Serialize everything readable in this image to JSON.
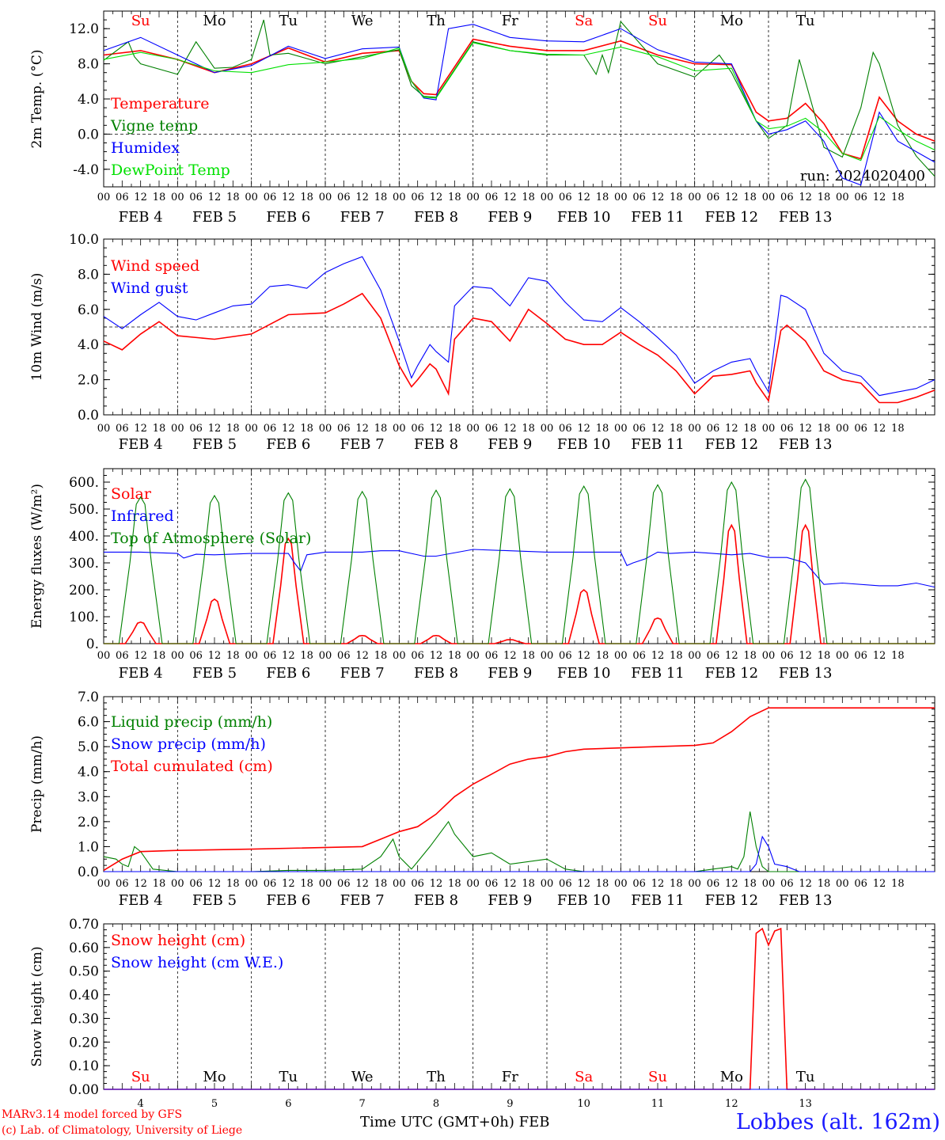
{
  "colors": {
    "red": "#ff0000",
    "green": "#008000",
    "blue": "#0000ff",
    "lightgreen": "#00e000",
    "black": "#000000"
  },
  "hour_ticks": [
    "00",
    "06",
    "12",
    "18"
  ],
  "day_labels": [
    "FEB  4",
    "FEB  5",
    "FEB  6",
    "FEB  7",
    "FEB  8",
    "FEB  9",
    "FEB 10",
    "FEB 11",
    "FEB 12",
    "FEB 13"
  ],
  "weekday_labels": [
    {
      "text": "Su",
      "color": "red"
    },
    {
      "text": "Mo",
      "color": "black"
    },
    {
      "text": "Tu",
      "color": "black"
    },
    {
      "text": "We",
      "color": "black"
    },
    {
      "text": "Th",
      "color": "black"
    },
    {
      "text": "Fr",
      "color": "black"
    },
    {
      "text": "Sa",
      "color": "red"
    },
    {
      "text": "Su",
      "color": "red"
    },
    {
      "text": "Mo",
      "color": "black"
    },
    {
      "text": "Tu",
      "color": "black"
    }
  ],
  "day_numbers": [
    "4",
    "5",
    "6",
    "7",
    "8",
    "9",
    "10",
    "11",
    "12",
    "13"
  ],
  "footer": {
    "model_line": "MARv3.14 model forced by GFS",
    "lab_line": "(c) Lab. of Climatology, University of Liege",
    "time_label": "Time UTC (GMT+0h) FEB",
    "station": "Lobbes (alt. 162m)"
  },
  "chart_data": [
    {
      "type": "line",
      "ylabel": "2m Temp. (°C)",
      "ylim": [
        -6,
        14
      ],
      "yticks": [
        -4.0,
        0.0,
        4.0,
        8.0,
        12.0
      ],
      "ytick_labels": [
        "-4.0",
        "0.0",
        "4.0",
        "8.0",
        "12.0"
      ],
      "ref_line": 0,
      "annotation": "run: 2024020400",
      "x_unit": "hours since FEB 4 00 UTC",
      "series": [
        {
          "name": "Temperature",
          "color": "red",
          "x": [
            0,
            12,
            24,
            36,
            48,
            60,
            72,
            84,
            96,
            100,
            104,
            108,
            120,
            132,
            144,
            156,
            168,
            180,
            192,
            204,
            212,
            216,
            222,
            228,
            234,
            240,
            246,
            252,
            258,
            264,
            270
          ],
          "values": [
            9,
            9.5,
            8.5,
            7,
            8,
            9.8,
            8.2,
            9.2,
            9.5,
            6,
            4.6,
            4.5,
            10.8,
            10,
            9.5,
            9.5,
            10.6,
            9,
            8,
            7.9,
            2.5,
            1.5,
            1.8,
            3.5,
            1.2,
            -2.2,
            -2.8,
            4.2,
            1.5,
            0,
            -0.8
          ]
        },
        {
          "name": "Vigne temp",
          "color": "green",
          "x": [
            0,
            8,
            10,
            12,
            24,
            30,
            36,
            42,
            48,
            52,
            54,
            60,
            72,
            84,
            96,
            100,
            104,
            108,
            120,
            132,
            144,
            156,
            160,
            162,
            164,
            168,
            180,
            192,
            200,
            204,
            212,
            216,
            222,
            226,
            228,
            234,
            240,
            246,
            250,
            252,
            258,
            264,
            270
          ],
          "values": [
            8.4,
            10.5,
            8.8,
            8,
            6.8,
            10.5,
            7.5,
            7.6,
            8.5,
            13,
            9,
            9.2,
            8,
            8.8,
            9.6,
            5.5,
            4.3,
            4.2,
            10.5,
            9.5,
            9,
            9,
            6.8,
            9,
            7,
            12.8,
            8,
            6.5,
            9,
            7,
            1.5,
            -0.5,
            1,
            8.5,
            6,
            -1.5,
            -2.6,
            3,
            9.3,
            8,
            1,
            -2.5,
            -4.8
          ]
        },
        {
          "name": "Humidex",
          "color": "blue",
          "x": [
            0,
            12,
            24,
            36,
            48,
            60,
            72,
            84,
            96,
            100,
            104,
            108,
            112,
            120,
            132,
            144,
            156,
            168,
            180,
            192,
            204,
            212,
            216,
            222,
            228,
            234,
            240,
            246,
            252,
            258,
            264,
            270
          ],
          "values": [
            9.5,
            11,
            9,
            7,
            7.8,
            10,
            8.6,
            9.7,
            9.9,
            6,
            4.1,
            3.9,
            12,
            12.5,
            11,
            10.6,
            10.5,
            12,
            9.6,
            8.2,
            8,
            1.5,
            0,
            0.5,
            1.5,
            -0.8,
            -5,
            -5.8,
            2.5,
            -0.8,
            -2,
            -3.2
          ]
        },
        {
          "name": "DewPoint Temp",
          "color": "lightgreen",
          "x": [
            0,
            12,
            24,
            36,
            48,
            60,
            72,
            84,
            96,
            100,
            104,
            108,
            120,
            132,
            144,
            156,
            168,
            180,
            192,
            204,
            212,
            216,
            222,
            228,
            234,
            240,
            246,
            252,
            258,
            264,
            270
          ],
          "values": [
            8.5,
            9.3,
            8.5,
            7.2,
            7,
            7.9,
            8.2,
            8.6,
            9.8,
            6,
            4.2,
            4.1,
            10.4,
            9.5,
            9.1,
            9,
            9.9,
            8.8,
            7.2,
            7.5,
            1.5,
            0.6,
            0.9,
            1.8,
            0.2,
            -2.2,
            -3,
            2,
            0.5,
            -0.8,
            -1.8
          ]
        }
      ]
    },
    {
      "type": "line",
      "ylabel": "10m Wind (m/s)",
      "ylim": [
        0,
        10
      ],
      "yticks": [
        0.0,
        2.0,
        4.0,
        6.0,
        8.0,
        10.0
      ],
      "ytick_labels": [
        "0.0",
        "2.0",
        "4.0",
        "6.0",
        "8.0",
        "10.0"
      ],
      "ref_line": 5,
      "x_unit": "hours since FEB 4 00 UTC",
      "series": [
        {
          "name": "Wind speed",
          "color": "red",
          "x": [
            0,
            6,
            12,
            18,
            24,
            36,
            48,
            60,
            72,
            78,
            84,
            90,
            96,
            100,
            102,
            106,
            108,
            112,
            114,
            120,
            126,
            132,
            138,
            144,
            150,
            156,
            162,
            168,
            174,
            180,
            186,
            192,
            198,
            204,
            210,
            212,
            216,
            220,
            222,
            228,
            234,
            240,
            246,
            252,
            258,
            264,
            270
          ],
          "values": [
            4.2,
            3.7,
            4.6,
            5.3,
            4.5,
            4.3,
            4.6,
            5.7,
            5.8,
            6.3,
            6.9,
            5.5,
            2.8,
            1.6,
            2,
            2.9,
            2.6,
            1.2,
            4.3,
            5.5,
            5.3,
            4.2,
            6,
            5.2,
            4.3,
            4,
            4,
            4.7,
            4,
            3.4,
            2.5,
            1.2,
            2.2,
            2.3,
            2.5,
            1.8,
            0.8,
            4.8,
            5.1,
            4.2,
            2.5,
            2,
            1.8,
            0.7,
            0.7,
            1,
            1.4
          ]
        },
        {
          "name": "Wind gust",
          "color": "blue",
          "x": [
            0,
            6,
            12,
            18,
            24,
            30,
            36,
            42,
            48,
            54,
            60,
            66,
            72,
            78,
            84,
            90,
            96,
            100,
            102,
            106,
            108,
            112,
            114,
            120,
            126,
            132,
            138,
            144,
            150,
            156,
            162,
            168,
            174,
            180,
            186,
            192,
            198,
            204,
            210,
            212,
            216,
            220,
            222,
            228,
            234,
            240,
            246,
            252,
            258,
            264,
            270
          ],
          "values": [
            5.6,
            4.9,
            5.7,
            6.4,
            5.6,
            5.4,
            5.8,
            6.2,
            6.3,
            7.3,
            7.4,
            7.2,
            8.1,
            8.6,
            9,
            7.1,
            4.2,
            2.1,
            2.8,
            4,
            3.6,
            3,
            6.2,
            7.3,
            7.2,
            6.2,
            7.8,
            7.6,
            6.4,
            5.4,
            5.3,
            6.1,
            5.3,
            4.4,
            3.4,
            1.8,
            2.5,
            3,
            3.2,
            2.5,
            1.3,
            6.8,
            6.7,
            6,
            3.5,
            2.5,
            2.2,
            1.1,
            1.3,
            1.5,
            2
          ]
        }
      ]
    },
    {
      "type": "line",
      "ylabel": "Energy fluxes (W/m²)",
      "ylim": [
        0,
        650
      ],
      "yticks": [
        0,
        100,
        200,
        300,
        400,
        500,
        600
      ],
      "ytick_labels": [
        "0.",
        "100.",
        "200.",
        "300.",
        "400.",
        "500.",
        "600."
      ],
      "x_unit": "hours since FEB 4 00 UTC",
      "solar_peaks": [
        80,
        165,
        390,
        30,
        30,
        15,
        200,
        95,
        440,
        440
      ],
      "toa_peaks": [
        545,
        550,
        560,
        565,
        570,
        575,
        585,
        590,
        600,
        610
      ],
      "series": [
        {
          "name": "Solar",
          "color": "red"
        },
        {
          "name": "Infrared",
          "color": "blue",
          "x": [
            0,
            12,
            24,
            26,
            30,
            36,
            48,
            60,
            62,
            64,
            66,
            72,
            84,
            90,
            96,
            104,
            108,
            120,
            132,
            144,
            156,
            168,
            170,
            172,
            176,
            180,
            184,
            192,
            204,
            210,
            216,
            222,
            228,
            234,
            240,
            252,
            258,
            264,
            270
          ],
          "values": [
            340,
            340,
            335,
            318,
            332,
            330,
            335,
            335,
            300,
            270,
            330,
            340,
            340,
            345,
            345,
            325,
            325,
            350,
            345,
            340,
            340,
            340,
            290,
            300,
            315,
            340,
            335,
            340,
            330,
            335,
            320,
            320,
            300,
            220,
            225,
            215,
            215,
            225,
            210
          ]
        },
        {
          "name": "Top of Atmosphere (Solar)",
          "color": "green"
        }
      ]
    },
    {
      "type": "line",
      "ylabel": "Precip (mm/h)",
      "ylim": [
        0,
        7
      ],
      "yticks": [
        0.0,
        1.0,
        2.0,
        3.0,
        4.0,
        5.0,
        6.0,
        7.0
      ],
      "ytick_labels": [
        "0.0",
        "1.0",
        "2.0",
        "3.0",
        "4.0",
        "5.0",
        "6.0",
        "7.0"
      ],
      "x_unit": "hours since FEB 4 00 UTC",
      "series": [
        {
          "name": "Liquid precip (mm/h)",
          "color": "green",
          "x": [
            0,
            4,
            6,
            8,
            10,
            12,
            16,
            24,
            36,
            48,
            60,
            72,
            84,
            90,
            94,
            96,
            100,
            102,
            106,
            112,
            114,
            120,
            126,
            132,
            144,
            150,
            156,
            168,
            180,
            192,
            204,
            206,
            208,
            210,
            212,
            214,
            216,
            218,
            222,
            270
          ],
          "values": [
            0.6,
            0.5,
            0.3,
            0.2,
            1,
            0.8,
            0.1,
            0,
            0,
            0,
            0.05,
            0.05,
            0.1,
            0.6,
            1.3,
            0.6,
            0.1,
            0.4,
            1,
            2,
            1.5,
            0.6,
            0.75,
            0.3,
            0.5,
            0.1,
            0,
            0,
            0,
            0,
            0.2,
            0.1,
            0.6,
            2.4,
            1,
            0.2,
            0,
            0,
            0,
            0
          ]
        },
        {
          "name": "Snow precip (mm/h)",
          "color": "blue",
          "x": [
            0,
            204,
            208,
            210,
            212,
            214,
            216,
            218,
            222,
            226,
            270
          ],
          "values": [
            0,
            0,
            0,
            0,
            0.3,
            1.4,
            1,
            0.3,
            0.2,
            0,
            0
          ]
        },
        {
          "name": "Total cumulated (cm)",
          "color": "red",
          "x": [
            0,
            6,
            12,
            24,
            48,
            84,
            90,
            96,
            102,
            108,
            114,
            120,
            126,
            132,
            138,
            144,
            150,
            156,
            168,
            180,
            192,
            198,
            204,
            210,
            216,
            270
          ],
          "values": [
            0.05,
            0.5,
            0.8,
            0.85,
            0.9,
            1,
            1.3,
            1.6,
            1.8,
            2.3,
            3,
            3.5,
            3.9,
            4.3,
            4.5,
            4.6,
            4.8,
            4.9,
            4.95,
            5,
            5.05,
            5.15,
            5.6,
            6.2,
            6.55,
            6.55
          ]
        }
      ]
    },
    {
      "type": "line",
      "ylabel": "Snow height (cm)",
      "ylim": [
        0,
        0.7
      ],
      "yticks": [
        0,
        0.1,
        0.2,
        0.3,
        0.4,
        0.5,
        0.6,
        0.7
      ],
      "ytick_labels": [
        "0.00",
        "0.10",
        "0.20",
        "0.30",
        "0.40",
        "0.50",
        "0.60",
        "0.70"
      ],
      "x_unit": "hours since FEB 4 00 UTC",
      "series": [
        {
          "name": "Snow height (cm)",
          "color": "red",
          "x": [
            0,
            210,
            212,
            214,
            216,
            218,
            220,
            222,
            270
          ],
          "values": [
            0,
            0,
            0.66,
            0.68,
            0.61,
            0.67,
            0.68,
            0,
            0
          ]
        },
        {
          "name": "Snow height (cm W.E.)",
          "color": "blue",
          "x": [
            0,
            270
          ],
          "values": [
            0,
            0
          ]
        }
      ]
    }
  ]
}
